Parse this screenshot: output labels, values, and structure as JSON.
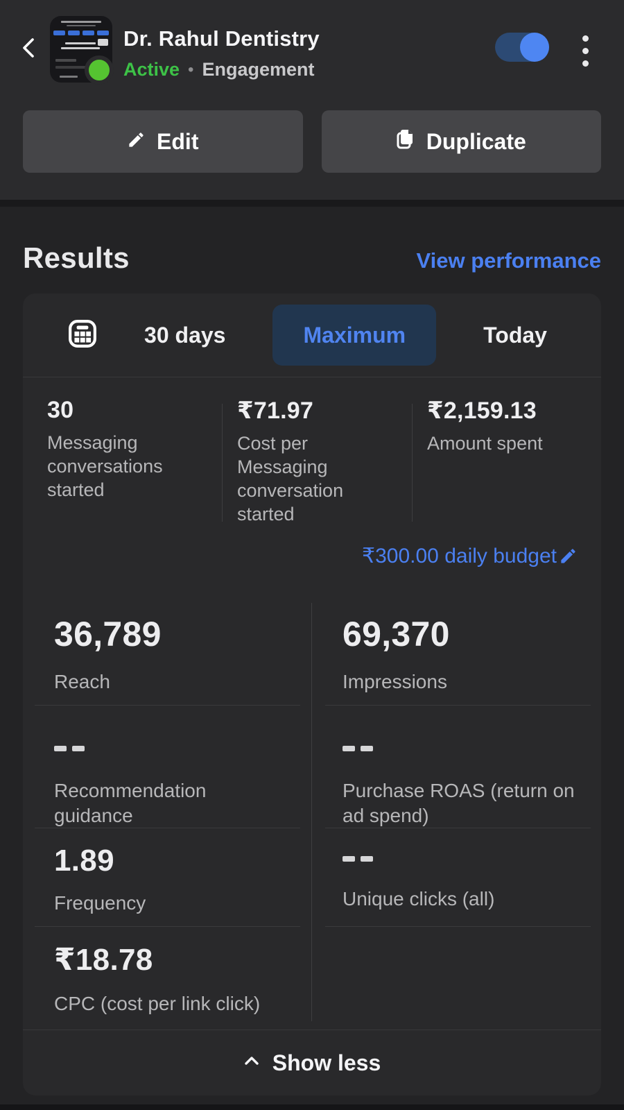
{
  "header": {
    "title": "Dr. Rahul Dentistry",
    "status": "Active",
    "separator": "•",
    "objective": "Engagement",
    "toggle_on": true,
    "edit_label": "Edit",
    "duplicate_label": "Duplicate"
  },
  "results": {
    "heading": "Results",
    "view_performance": "View performance",
    "tabs": [
      {
        "label": "30 days",
        "selected": false
      },
      {
        "label": "Maximum",
        "selected": true
      },
      {
        "label": "Today",
        "selected": false
      }
    ],
    "summary_metrics": [
      {
        "value": "30",
        "label": "Messaging conversations started"
      },
      {
        "value": "₹71.97",
        "label": "Cost per Messaging conversation started"
      },
      {
        "value": "₹2,159.13",
        "label": "Amount spent"
      }
    ],
    "daily_budget": "₹300.00 daily budget",
    "detail_metrics": [
      {
        "value": "36,789",
        "label": "Reach"
      },
      {
        "value": "69,370",
        "label": "Impressions"
      },
      {
        "value": "--",
        "label": "Recommendation guidance"
      },
      {
        "value": "--",
        "label": "Purchase ROAS (return on ad spend)"
      },
      {
        "value": "1.89",
        "label": "Frequency"
      },
      {
        "value": "--",
        "label": "Unique clicks (all)"
      },
      {
        "value": "₹18.78",
        "label": "CPC (cost per link click)"
      }
    ],
    "show_less": "Show less"
  },
  "icons": {
    "back": "chevron-left-icon",
    "menu": "kebab-menu-icon",
    "edit": "pencil-icon",
    "duplicate": "copy-pages-icon",
    "date_range": "calendar-grid-icon",
    "edit_budget": "pencil-icon",
    "collapse": "chevron-up-icon",
    "status": "green-dot"
  },
  "colors": {
    "page_bg": "#232325",
    "header_bg": "#2b2b2d",
    "card_bg": "#29292b",
    "button_bg": "#454548",
    "accent_blue": "#4b80f1",
    "pill_bg": "#21364f",
    "status_green": "#3dc247",
    "toggle_track_on": "#2c4a74",
    "toggle_knob_on": "#4e86f2",
    "text_secondary": "#b7b7b9"
  }
}
